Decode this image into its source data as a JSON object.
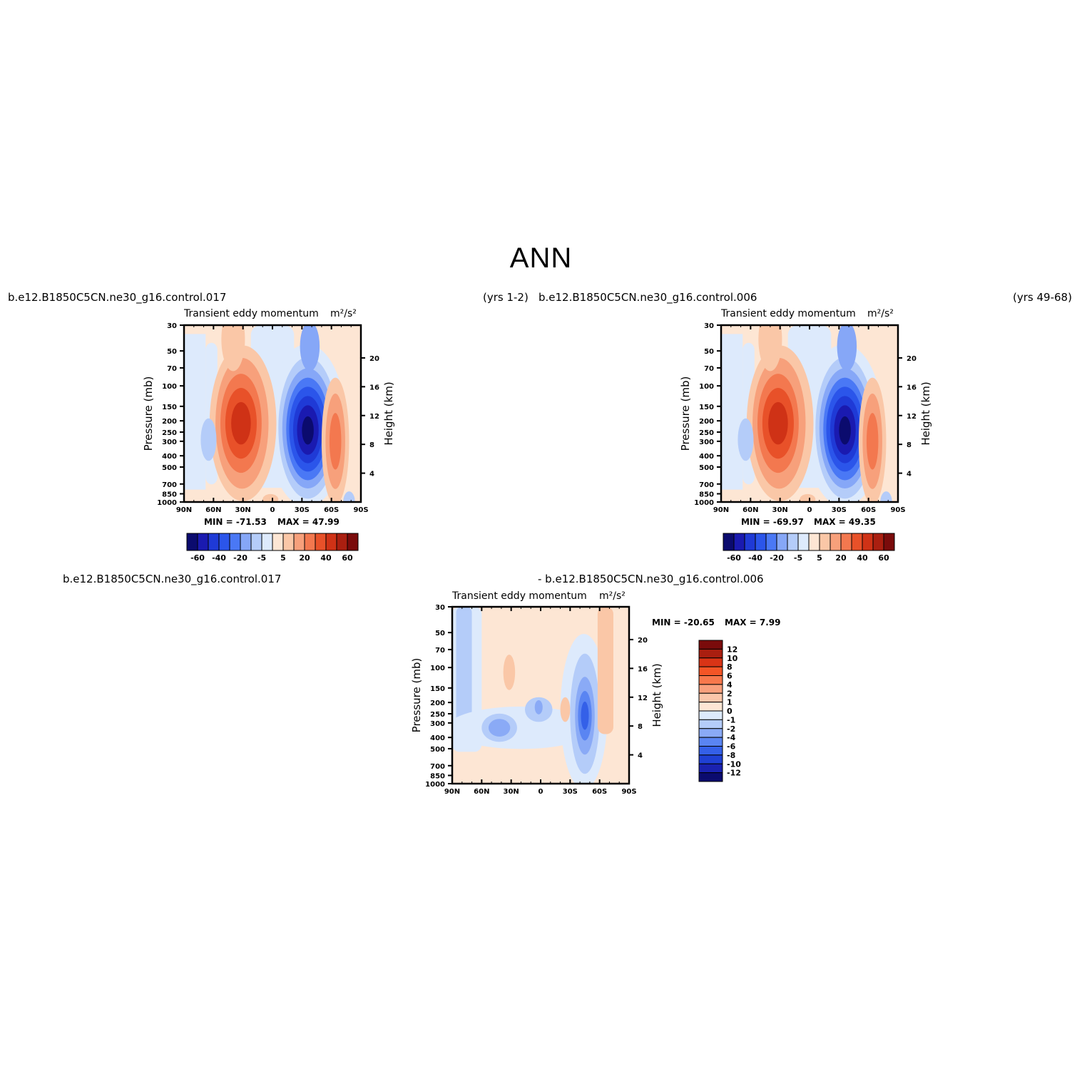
{
  "title": "ANN",
  "panels": [
    {
      "case_left": "b.e12.B1850C5CN.ne30_g16.control.017",
      "case_right": "(yrs 1-2)",
      "variable": "Transient eddy momentum",
      "units": "m²/s²",
      "min_label": "MIN = -71.53",
      "max_label": "MAX = 47.99"
    },
    {
      "case_left": "b.e12.B1850C5CN.ne30_g16.control.006",
      "case_right": "(yrs 49-68)",
      "variable": "Transient eddy momentum",
      "units": "m²/s²",
      "min_label": "MIN = -69.97",
      "max_label": "MAX = 49.35"
    },
    {
      "case_left": "b.e12.B1850C5CN.ne30_g16.control.017",
      "case_right": "- b.e12.B1850C5CN.ne30_g16.control.006",
      "variable": "Transient eddy momentum",
      "units": "m²/s²",
      "min_label": "MIN = -20.65",
      "max_label": "MAX = 7.99"
    }
  ],
  "chart_data": [
    {
      "type": "heatmap",
      "panel": "case-017",
      "x_ticks": [
        "90N",
        "60N",
        "30N",
        "0",
        "30S",
        "60S",
        "90S"
      ],
      "x_tick_values": [
        90,
        60,
        30,
        0,
        -30,
        -60,
        -90
      ],
      "y_left_label": "Pressure (mb)",
      "y_left_ticks": [
        30,
        50,
        70,
        100,
        150,
        200,
        250,
        300,
        400,
        500,
        700,
        850,
        1000
      ],
      "y_left_scale": "log",
      "y_right_label": "Height (km)",
      "y_right_ticks": [
        4,
        8,
        12,
        16,
        20
      ],
      "min": -71.53,
      "max": 47.99,
      "colorbar_levels": [
        -70,
        -60,
        -50,
        -40,
        -30,
        -20,
        -10,
        -5,
        0,
        5,
        10,
        20,
        30,
        40,
        50,
        60,
        70
      ],
      "colorbar_tick_labels": [
        "-60",
        "-40",
        "-20",
        "-5",
        "5",
        "20",
        "40",
        "60"
      ],
      "features": [
        {
          "lat": -35,
          "p": 230,
          "value": -71.53
        },
        {
          "lat": 32,
          "p": 210,
          "value": 47.99
        },
        {
          "lat": -65,
          "p": 300,
          "value": 30
        },
        {
          "lat": 65,
          "p": 300,
          "value": -10
        }
      ]
    },
    {
      "type": "heatmap",
      "panel": "case-006",
      "x_ticks": [
        "90N",
        "60N",
        "30N",
        "0",
        "30S",
        "60S",
        "90S"
      ],
      "x_tick_values": [
        90,
        60,
        30,
        0,
        -30,
        -60,
        -90
      ],
      "y_left_label": "Pressure (mb)",
      "y_left_ticks": [
        30,
        50,
        70,
        100,
        150,
        200,
        250,
        300,
        400,
        500,
        700,
        850,
        1000
      ],
      "y_left_scale": "log",
      "y_right_label": "Height (km)",
      "y_right_ticks": [
        4,
        8,
        12,
        16,
        20
      ],
      "min": -69.97,
      "max": 49.35,
      "colorbar_levels": [
        -70,
        -60,
        -50,
        -40,
        -30,
        -20,
        -10,
        -5,
        0,
        5,
        10,
        20,
        30,
        40,
        50,
        60,
        70
      ],
      "colorbar_tick_labels": [
        "-60",
        "-40",
        "-20",
        "-5",
        "5",
        "20",
        "40",
        "60"
      ],
      "features": [
        {
          "lat": -35,
          "p": 230,
          "value": -69.97
        },
        {
          "lat": 32,
          "p": 210,
          "value": 49.35
        },
        {
          "lat": -65,
          "p": 300,
          "value": 30
        },
        {
          "lat": 65,
          "p": 300,
          "value": -10
        }
      ]
    },
    {
      "type": "heatmap",
      "panel": "difference",
      "x_ticks": [
        "90N",
        "60N",
        "30N",
        "0",
        "30S",
        "60S",
        "90S"
      ],
      "x_tick_values": [
        90,
        60,
        30,
        0,
        -30,
        -60,
        -90
      ],
      "y_left_label": "Pressure (mb)",
      "y_left_ticks": [
        30,
        50,
        70,
        100,
        150,
        200,
        250,
        300,
        400,
        500,
        700,
        850,
        1000
      ],
      "y_left_scale": "log",
      "y_right_label": "Height (km)",
      "y_right_ticks": [
        4,
        8,
        12,
        16,
        20
      ],
      "min": -20.65,
      "max": 7.99,
      "colorbar_levels": [
        -12,
        -10,
        -8,
        -6,
        -4,
        -2,
        -1,
        0,
        1,
        2,
        4,
        6,
        8,
        10,
        12
      ],
      "colorbar_tick_labels": [
        "12",
        "10",
        "8",
        "6",
        "4",
        "2",
        "1",
        "0",
        "-1",
        "-2",
        "-4",
        "-6",
        "-8",
        "-10",
        "-12"
      ],
      "features": [
        {
          "lat": -45,
          "p": 260,
          "value": -20.65
        },
        {
          "lat": 42,
          "p": 320,
          "value": -6
        },
        {
          "lat": -70,
          "p": 150,
          "value": 4
        },
        {
          "lat": 30,
          "p": 110,
          "value": 3
        }
      ]
    }
  ],
  "colors": {
    "min_blue": "#0b0b6e",
    "max_red": "#7a0b0b",
    "background": "#ffffff"
  }
}
